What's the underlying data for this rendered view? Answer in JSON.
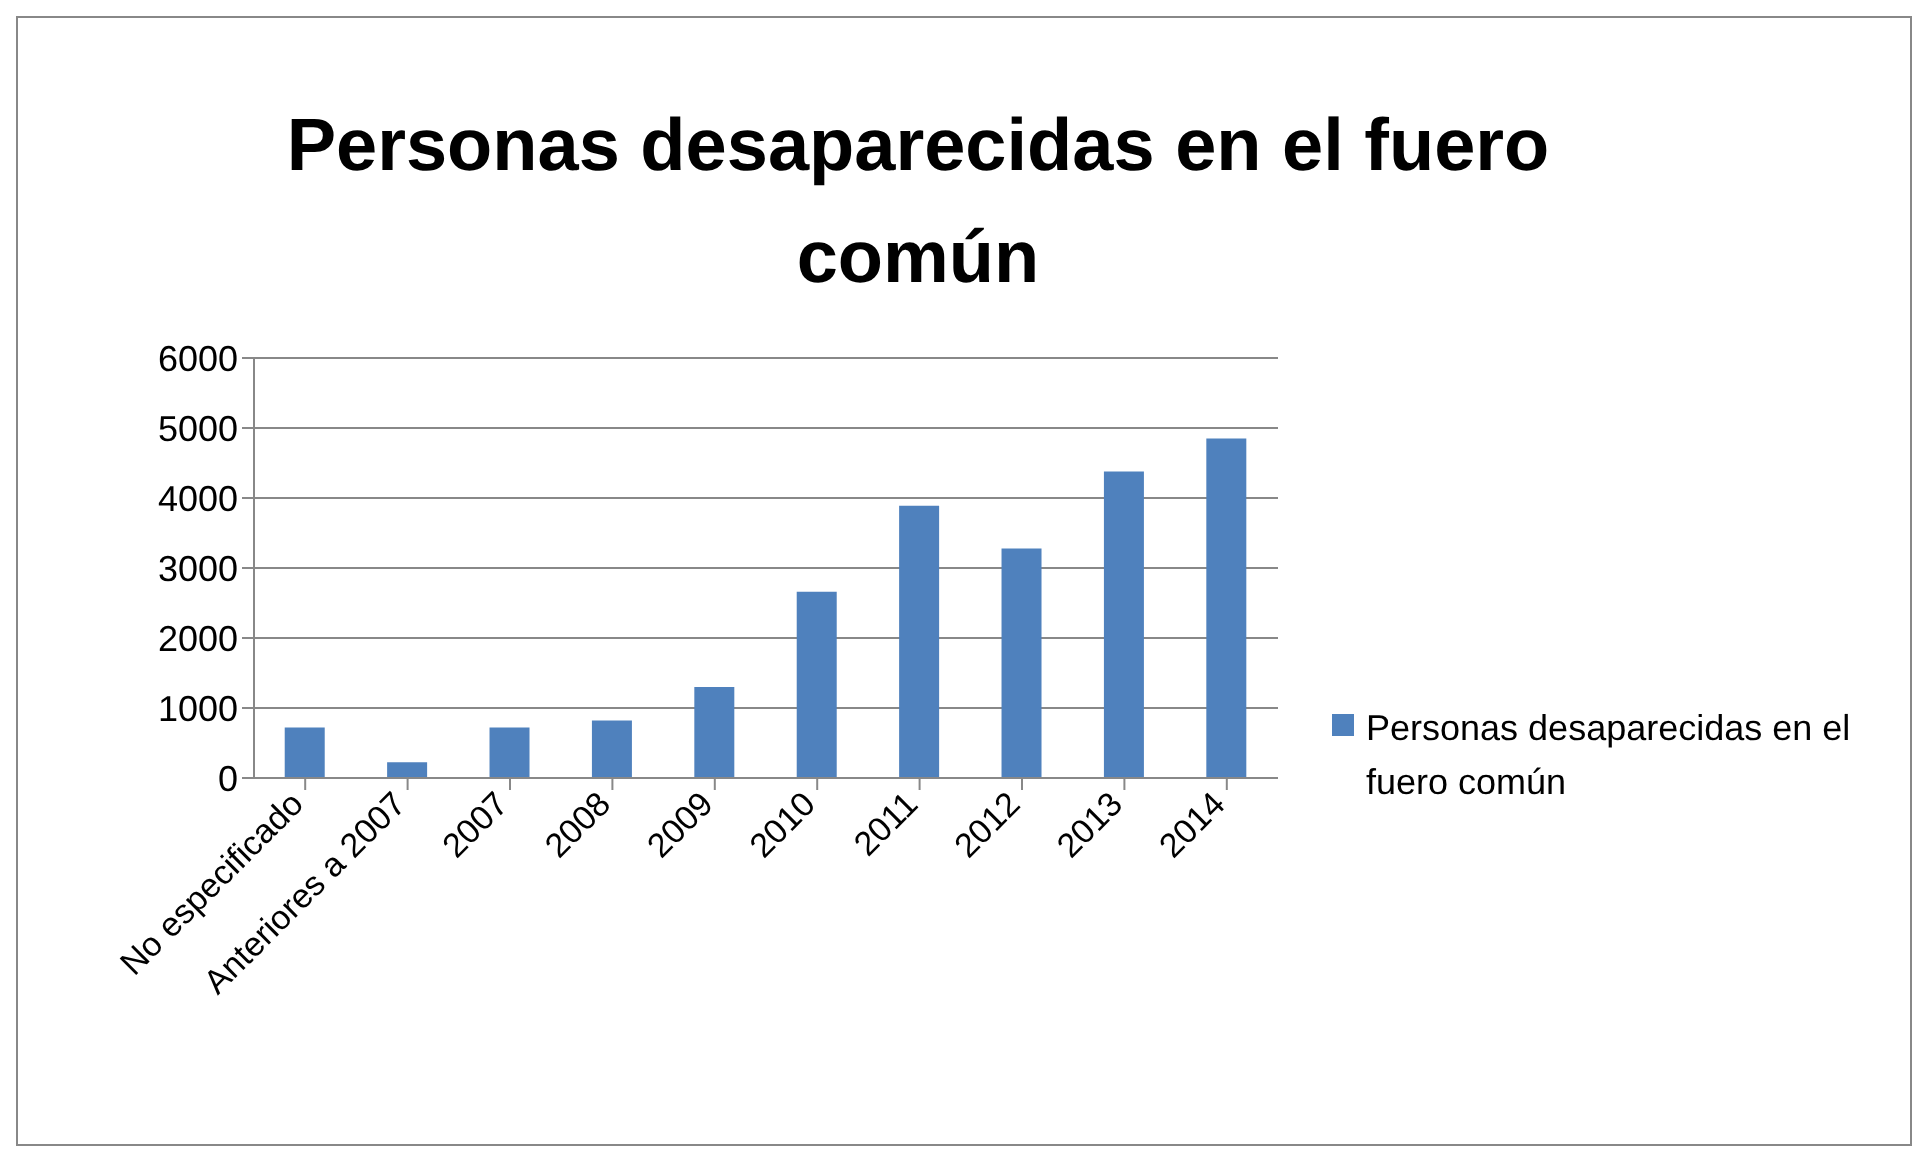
{
  "chart_data": {
    "type": "bar",
    "title": "Personas desaparecidas en el fuero común",
    "categories": [
      "No especificado",
      "Anteriores a 2007",
      "2007",
      "2008",
      "2009",
      "2010",
      "2011",
      "2012",
      "2013",
      "2014"
    ],
    "series": [
      {
        "name": "Personas desaparecidas en el fuero común",
        "color": "#4f81bd",
        "values": [
          720,
          224,
          720,
          822,
          1300,
          2660,
          3890,
          3280,
          4380,
          4850
        ]
      }
    ],
    "ylim": [
      0,
      6000
    ],
    "yticks": [
      0,
      1000,
      2000,
      3000,
      4000,
      5000,
      6000
    ],
    "grid": "y",
    "legend": "right"
  }
}
